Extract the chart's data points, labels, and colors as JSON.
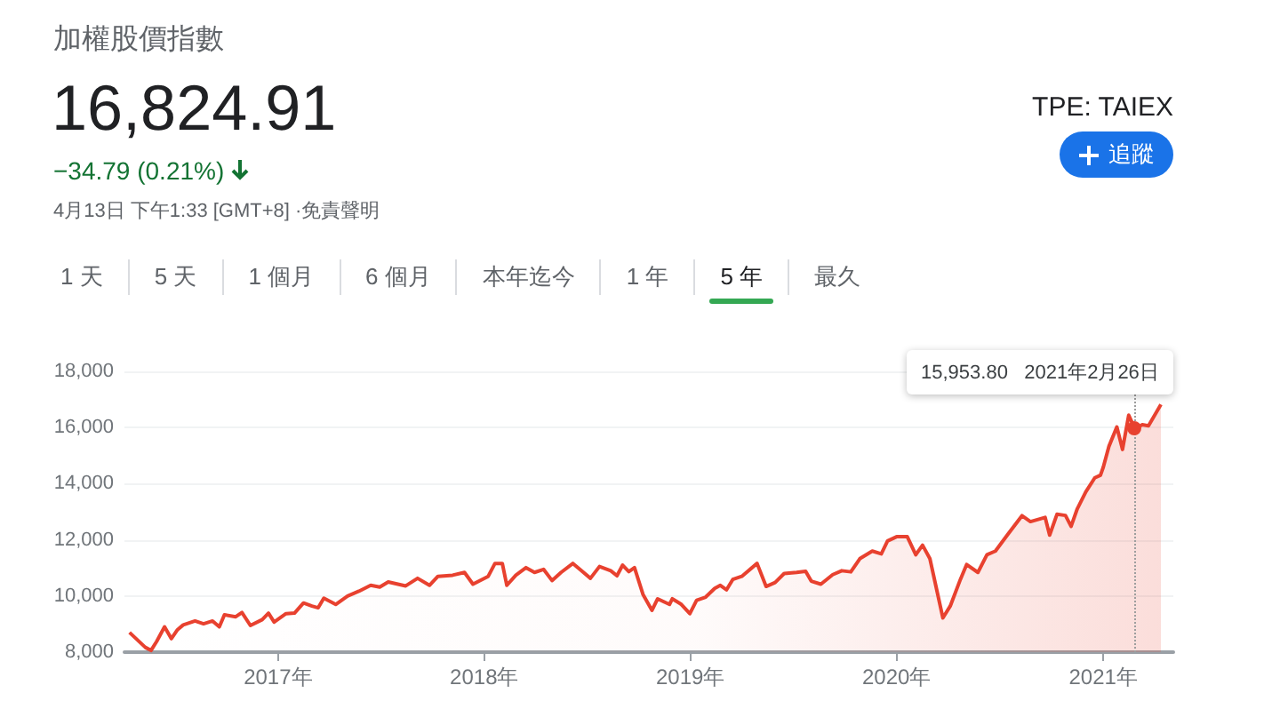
{
  "chart_data": {
    "type": "area",
    "title": "加權股價指數",
    "subtitle": "16,824.91",
    "annotations": [
      "−34.79 (0.21%)",
      "4月13日 下午1:33 [GMT+8] ·免責聲明",
      "TPE: TAIEX",
      "追蹤",
      "1 天",
      "5 天",
      "1 個月",
      "6 個月",
      "本年迄今",
      "1 年",
      "5 年",
      "最久",
      {
        "text": "15,953.80   2021年2月26日",
        "x": "2021-02-26",
        "y": 15953.8
      }
    ],
    "x": [
      "2016-04-13",
      "2016-05-11",
      "2016-05-21",
      "2016-05-31",
      "2016-06-14",
      "2016-06-26",
      "2016-07-07",
      "2016-07-17",
      "2016-08-07",
      "2016-08-22",
      "2016-09-07",
      "2016-09-19",
      "2016-09-28",
      "2016-10-18",
      "2016-10-29",
      "2016-11-13",
      "2016-12-04",
      "2016-12-15",
      "2016-12-25",
      "2017-01-15",
      "2017-01-30",
      "2017-02-15",
      "2017-03-02",
      "2017-03-13",
      "2017-03-23",
      "2017-04-13",
      "2017-05-04",
      "2017-05-24",
      "2017-06-14",
      "2017-06-30",
      "2017-07-15",
      "2017-08-15",
      "2017-09-05",
      "2017-09-26",
      "2017-10-11",
      "2017-11-06",
      "2017-11-27",
      "2017-12-12",
      "2018-01-08",
      "2018-01-20",
      "2018-02-02",
      "2018-02-10",
      "2018-02-26",
      "2018-03-16",
      "2018-03-31",
      "2018-04-16",
      "2018-05-01",
      "2018-05-17",
      "2018-06-07",
      "2018-06-22",
      "2018-07-08",
      "2018-07-24",
      "2018-08-13",
      "2018-08-24",
      "2018-09-03",
      "2018-09-14",
      "2018-09-24",
      "2018-10-09",
      "2018-10-25",
      "2018-11-04",
      "2018-11-25",
      "2018-11-30",
      "2018-12-16",
      "2018-12-31",
      "2019-01-12",
      "2019-01-28",
      "2019-02-13",
      "2019-02-23",
      "2019-03-06",
      "2019-03-17",
      "2019-04-02",
      "2019-04-29",
      "2019-05-15",
      "2019-05-31",
      "2019-06-16",
      "2019-07-08",
      "2019-07-24",
      "2019-08-03",
      "2019-08-20",
      "2019-09-10",
      "2019-09-26",
      "2019-10-12",
      "2019-10-28",
      "2019-11-19",
      "2019-12-05",
      "2019-12-16",
      "2020-01-01",
      "2020-01-20",
      "2020-02-04",
      "2020-02-16",
      "2020-02-29",
      "2020-03-23",
      "2020-04-05",
      "2020-04-23",
      "2020-05-04",
      "2020-05-24",
      "2020-06-09",
      "2020-06-24",
      "2020-07-15",
      "2020-08-10",
      "2020-08-25",
      "2020-09-20",
      "2020-09-28",
      "2020-10-11",
      "2020-10-26",
      "2020-11-05",
      "2020-11-16",
      "2020-12-01",
      "2020-12-17",
      "2020-12-27",
      "2021-01-01",
      "2021-01-11",
      "2021-01-25",
      "2021-02-04",
      "2021-02-15",
      "2021-02-26",
      "2021-03-11",
      "2021-03-22",
      "2021-04-13"
    ],
    "series": [
      {
        "color": "#e8412f",
        "values": [
          8700,
          8170,
          8060,
          8380,
          8900,
          8480,
          8800,
          8970,
          9110,
          9010,
          9110,
          8900,
          9330,
          9260,
          9410,
          8950,
          9160,
          9390,
          9070,
          9370,
          9390,
          9750,
          9640,
          9580,
          9920,
          9700,
          10000,
          10170,
          10380,
          10320,
          10500,
          10360,
          10630,
          10380,
          10700,
          10740,
          10840,
          10420,
          10700,
          11160,
          11160,
          10380,
          10740,
          11010,
          10840,
          10950,
          10550,
          10840,
          11160,
          10900,
          10630,
          11050,
          10900,
          10720,
          11100,
          10870,
          11010,
          10060,
          9490,
          9900,
          9700,
          9900,
          9700,
          9370,
          9850,
          9960,
          10270,
          10380,
          10220,
          10590,
          10700,
          11160,
          10340,
          10480,
          10800,
          10840,
          10880,
          10530,
          10420,
          10760,
          10900,
          10860,
          11330,
          11600,
          11500,
          11960,
          12110,
          12110,
          11470,
          11810,
          11330,
          9220,
          9640,
          10590,
          11120,
          10840,
          11470,
          11600,
          12170,
          12860,
          12650,
          12800,
          12170,
          12910,
          12870,
          12480,
          13110,
          13710,
          14210,
          14300,
          14590,
          15330,
          16020,
          15220,
          16440,
          15953.8,
          16100,
          16060,
          16824.91
        ]
      }
    ],
    "xlim": [
      "2016-04-04",
      "2021-05-05"
    ],
    "xticks": [
      {
        "value": "2017-01-01",
        "label": "2017年"
      },
      {
        "value": "2018-01-01",
        "label": "2018年"
      },
      {
        "value": "2019-01-01",
        "label": "2019年"
      },
      {
        "value": "2020-01-01",
        "label": "2020年"
      },
      {
        "value": "2021-01-01",
        "label": "2021年"
      }
    ],
    "ylim": [
      8000,
      18000
    ],
    "yticks": [
      {
        "value": 8000,
        "label": "8,000"
      },
      {
        "value": 10000,
        "label": "10,000"
      },
      {
        "value": 12000,
        "label": "12,000"
      },
      {
        "value": 14000,
        "label": "14,000"
      },
      {
        "value": 16000,
        "label": "16,000"
      },
      {
        "value": 18000,
        "label": "18,000"
      }
    ],
    "grid": "y",
    "marker": "none",
    "line_style": "solid",
    "ref_lines": [
      {
        "axis": "x",
        "value": "2021-02-26",
        "label": null,
        "color": "#9e9e9e",
        "line_style": "dotted"
      }
    ]
  }
}
